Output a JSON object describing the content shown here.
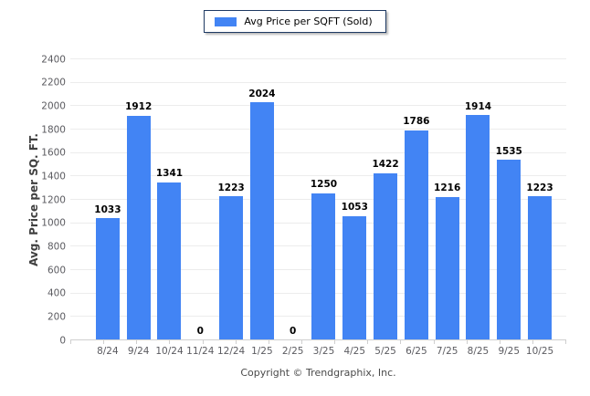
{
  "legend": {
    "label": "Avg Price per SQFT (Sold)",
    "swatch_color": "#4284f4"
  },
  "footer": {
    "copyright": "Copyright © Trendgraphix, Inc."
  },
  "colors": {
    "bar": "#4284f4",
    "gridline": "#ececec",
    "axis_line": "#cfcfcf",
    "tick_label": "#5b5b60",
    "value_label": "#000000",
    "legend_border": "#1e3a63"
  },
  "chart_data": {
    "type": "bar",
    "title": "",
    "categories": [
      "8/24",
      "9/24",
      "10/24",
      "11/24",
      "12/24",
      "1/25",
      "2/25",
      "3/25",
      "4/25",
      "5/25",
      "6/25",
      "7/25",
      "8/25",
      "9/25",
      "10/25"
    ],
    "series": [
      {
        "name": "Avg Price per SQFT (Sold)",
        "values": [
          1033,
          1912,
          1341,
          0,
          1223,
          2024,
          0,
          1250,
          1053,
          1422,
          1786,
          1216,
          1914,
          1535,
          1223
        ]
      }
    ],
    "data_labels_shown": true,
    "xlabel": "",
    "ylabel": "Avg. Price per SQ. FT.",
    "ylim": [
      0,
      2400
    ],
    "yticks": [
      0,
      200,
      400,
      600,
      800,
      1000,
      1200,
      1400,
      1600,
      1800,
      2000,
      2200,
      2400
    ],
    "grid": true,
    "legend_position": "top-center",
    "bar_color": "#4284f4"
  }
}
